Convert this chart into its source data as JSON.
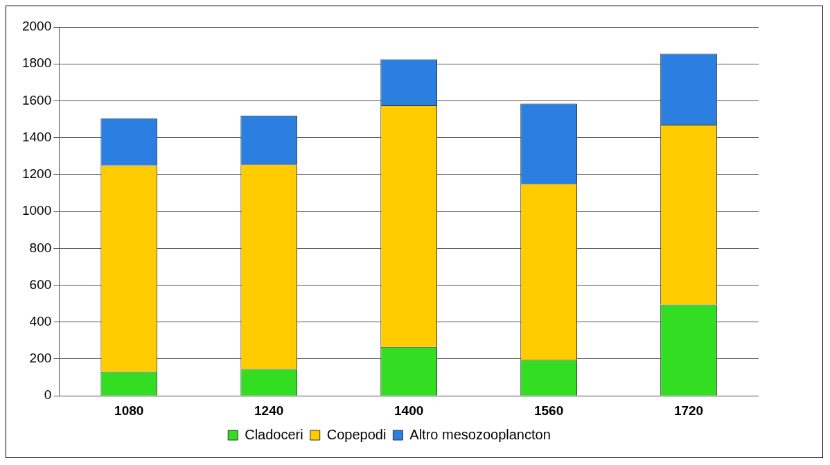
{
  "chart_data": {
    "type": "bar",
    "stacked": true,
    "categories": [
      "1080",
      "1240",
      "1400",
      "1560",
      "1720"
    ],
    "series": [
      {
        "name": "Cladoceri",
        "color": "#33dd22",
        "values": [
          130,
          145,
          265,
          195,
          495
        ]
      },
      {
        "name": "Copepodi",
        "color": "#ffcc00",
        "values": [
          1120,
          1110,
          1310,
          955,
          975
        ]
      },
      {
        "name": "Altro mesozooplancton",
        "color": "#2a7fe0",
        "values": [
          255,
          265,
          250,
          435,
          385
        ]
      }
    ],
    "ylim": [
      0,
      2000
    ],
    "yticks": [
      0,
      200,
      400,
      600,
      800,
      1000,
      1200,
      1400,
      1600,
      1800,
      2000
    ],
    "grid": "y",
    "legend": "bottom"
  }
}
